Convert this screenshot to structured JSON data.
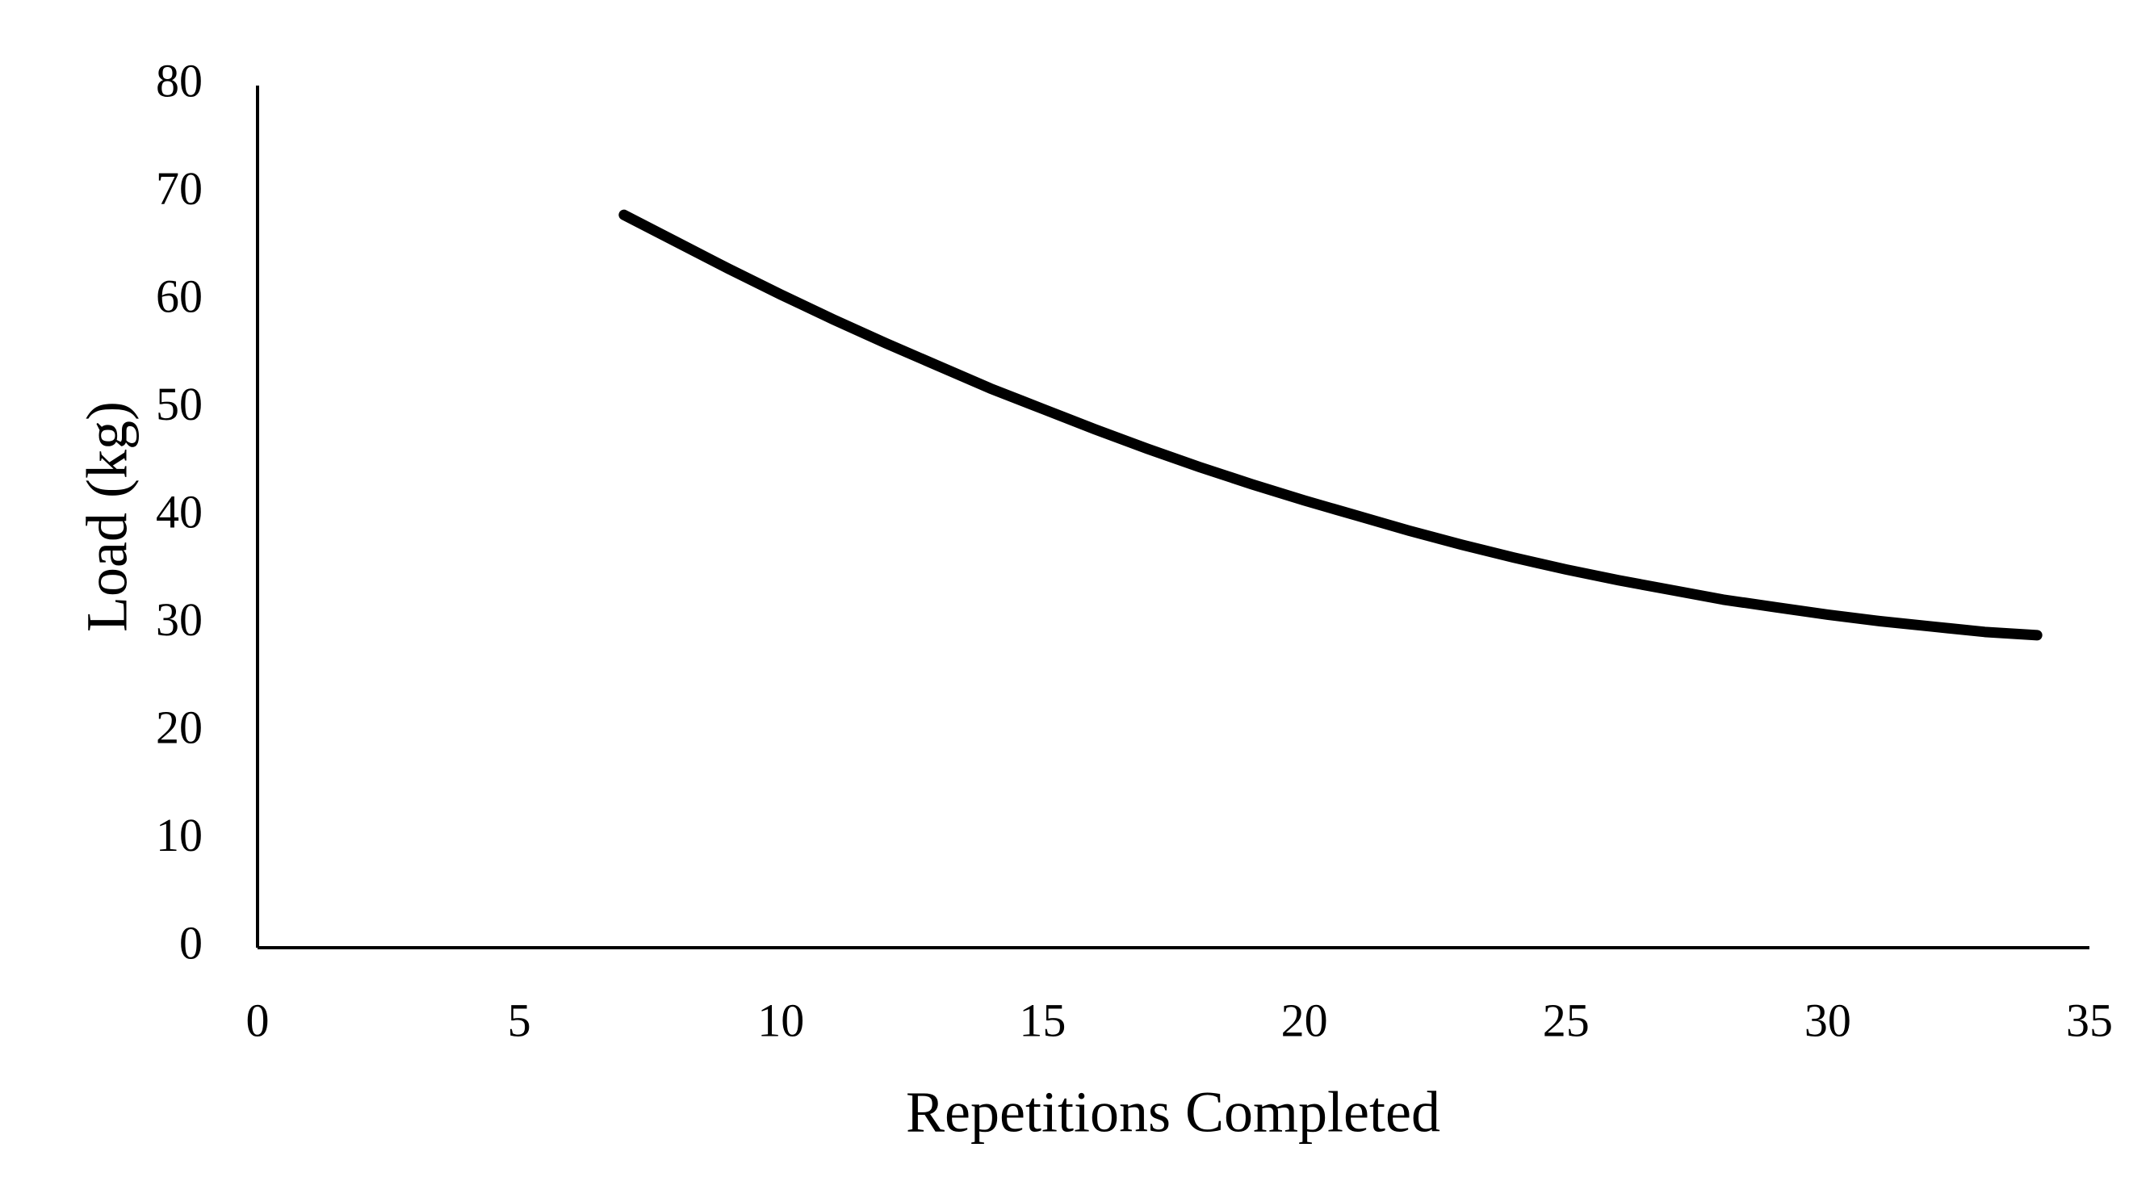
{
  "chart_data": {
    "type": "line",
    "x_label": "Repetitions Completed",
    "y_label": "Load (kg)",
    "x": [
      7,
      8,
      9,
      10,
      11,
      12,
      13,
      14,
      15,
      16,
      17,
      18,
      19,
      20,
      21,
      22,
      23,
      24,
      25,
      26,
      27,
      28,
      29,
      30,
      31,
      32,
      33,
      34
    ],
    "values": [
      68.0,
      65.5,
      63.0,
      60.6,
      58.3,
      56.1,
      54.0,
      51.9,
      50.0,
      48.1,
      46.3,
      44.6,
      43.0,
      41.5,
      40.1,
      38.7,
      37.4,
      36.2,
      35.1,
      34.1,
      33.2,
      32.3,
      31.6,
      30.9,
      30.3,
      29.8,
      29.3,
      29.0
    ],
    "color": "#000000",
    "xlim": [
      0,
      35
    ],
    "xticks": [
      0,
      5,
      10,
      15,
      20,
      25,
      30,
      35
    ],
    "ylim": [
      0,
      80
    ],
    "yticks": [
      0,
      10,
      20,
      30,
      40,
      50,
      60,
      70,
      80
    ],
    "grid": false
  }
}
